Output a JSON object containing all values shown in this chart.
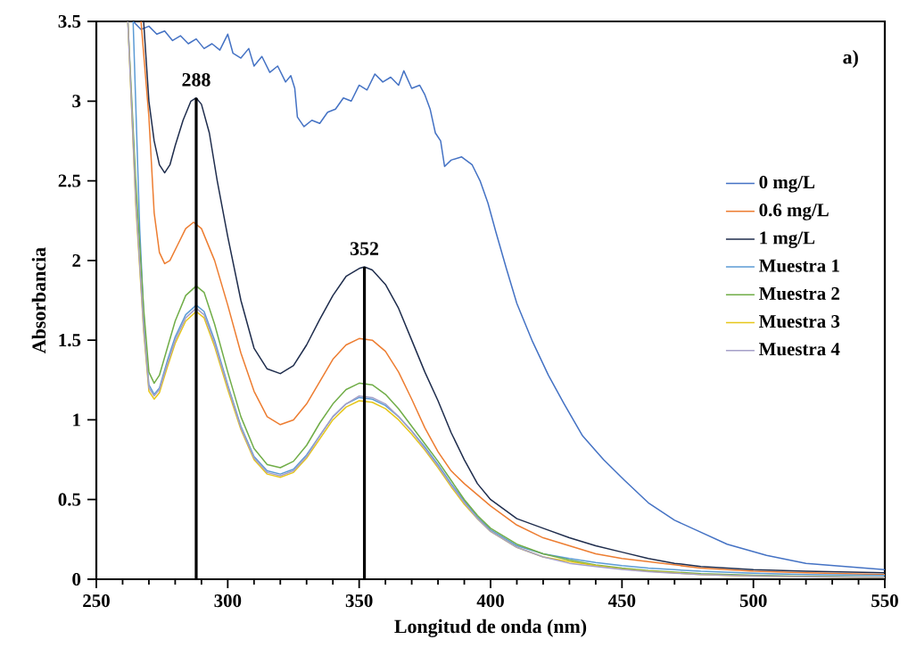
{
  "chart_data": {
    "type": "line",
    "xlabel": "Longitud de onda (nm)",
    "ylabel": "Absorbancia",
    "xlim": [
      250,
      550
    ],
    "ylim": [
      0,
      3.5
    ],
    "xticks": [
      250,
      300,
      350,
      400,
      450,
      500,
      550
    ],
    "yticks": [
      0,
      0.5,
      1,
      1.5,
      2,
      2.5,
      3,
      3.5
    ],
    "legend": "right",
    "grid": false,
    "line_style": "solid",
    "annotations": [
      {
        "text": "288",
        "x": 288,
        "y": 3.02
      },
      {
        "text": "352",
        "x": 352,
        "y": 1.96
      },
      "a)"
    ],
    "series": [
      {
        "name": "0 mg/L",
        "color": "#4472c4",
        "x": [
          264,
          267,
          270,
          273,
          276,
          279,
          282,
          285,
          288,
          291,
          294,
          297,
          300,
          302,
          305,
          308,
          310,
          313,
          316,
          319,
          322,
          324,
          325.5,
          326.5,
          329,
          332,
          335,
          338,
          341,
          344,
          347,
          350,
          353,
          356,
          359,
          362,
          365,
          367,
          370,
          373,
          375,
          377,
          379,
          381,
          382.5,
          385,
          389,
          393,
          396,
          399,
          402,
          406,
          410,
          416,
          422,
          428,
          435,
          443,
          451,
          460,
          470,
          478,
          490,
          505,
          520,
          535,
          550
        ],
        "values": [
          3.5,
          3.45,
          3.47,
          3.42,
          3.44,
          3.38,
          3.41,
          3.36,
          3.39,
          3.33,
          3.36,
          3.32,
          3.42,
          3.3,
          3.27,
          3.33,
          3.22,
          3.28,
          3.18,
          3.22,
          3.12,
          3.16,
          3.08,
          2.9,
          2.84,
          2.88,
          2.86,
          2.93,
          2.95,
          3.02,
          3.0,
          3.1,
          3.07,
          3.17,
          3.12,
          3.15,
          3.1,
          3.19,
          3.08,
          3.1,
          3.04,
          2.95,
          2.8,
          2.75,
          2.59,
          2.63,
          2.65,
          2.6,
          2.5,
          2.36,
          2.18,
          1.95,
          1.73,
          1.49,
          1.28,
          1.1,
          0.9,
          0.75,
          0.62,
          0.48,
          0.37,
          0.31,
          0.22,
          0.15,
          0.1,
          0.08,
          0.06
        ]
      },
      {
        "name": "0.6 mg/L",
        "color": "#ed7d31",
        "x": [
          267,
          270,
          272,
          274,
          276,
          278,
          281,
          284,
          287,
          290,
          295,
          300,
          305,
          310,
          315,
          320,
          325,
          330,
          335,
          340,
          345,
          350,
          355,
          360,
          365,
          370,
          375,
          380,
          385,
          390,
          395,
          400,
          410,
          420,
          430,
          440,
          450,
          460,
          470,
          480,
          500,
          520,
          550
        ],
        "values": [
          3.5,
          2.9,
          2.3,
          2.05,
          1.98,
          2.0,
          2.1,
          2.2,
          2.24,
          2.2,
          2.0,
          1.72,
          1.42,
          1.18,
          1.02,
          0.97,
          1.0,
          1.1,
          1.24,
          1.38,
          1.47,
          1.51,
          1.5,
          1.43,
          1.3,
          1.13,
          0.95,
          0.8,
          0.68,
          0.6,
          0.53,
          0.46,
          0.34,
          0.26,
          0.21,
          0.16,
          0.13,
          0.11,
          0.09,
          0.07,
          0.05,
          0.04,
          0.03
        ]
      },
      {
        "name": "1 mg/L",
        "color": "#1f2d4d",
        "x": [
          268,
          270,
          272,
          274,
          276,
          278,
          280,
          283,
          286,
          288,
          290,
          293,
          296,
          300,
          305,
          310,
          315,
          320,
          325,
          330,
          335,
          340,
          345,
          350,
          352,
          355,
          360,
          365,
          370,
          375,
          380,
          385,
          390,
          395,
          400,
          410,
          420,
          430,
          440,
          450,
          460,
          470,
          480,
          500,
          520,
          550
        ],
        "values": [
          3.5,
          3.0,
          2.75,
          2.6,
          2.55,
          2.6,
          2.72,
          2.88,
          3.0,
          3.02,
          2.98,
          2.8,
          2.5,
          2.15,
          1.75,
          1.45,
          1.32,
          1.29,
          1.34,
          1.47,
          1.63,
          1.78,
          1.9,
          1.95,
          1.96,
          1.94,
          1.85,
          1.7,
          1.5,
          1.3,
          1.12,
          0.92,
          0.75,
          0.6,
          0.5,
          0.38,
          0.32,
          0.26,
          0.21,
          0.17,
          0.13,
          0.1,
          0.08,
          0.06,
          0.05,
          0.04
        ]
      },
      {
        "name": "Muestra 1",
        "color": "#5b9bd5",
        "x": [
          264,
          266.5,
          268.5,
          270,
          272,
          274,
          277,
          280,
          284,
          288,
          291,
          295,
          300,
          305,
          310,
          315,
          320,
          325,
          330,
          335,
          340,
          345,
          350,
          355,
          360,
          365,
          370,
          375,
          380,
          385,
          390,
          395,
          400,
          410,
          420,
          430,
          440,
          450,
          460,
          470,
          480,
          500,
          520,
          550
        ],
        "values": [
          3.5,
          2.2,
          1.5,
          1.22,
          1.16,
          1.2,
          1.37,
          1.52,
          1.66,
          1.72,
          1.68,
          1.5,
          1.22,
          0.96,
          0.77,
          0.68,
          0.66,
          0.69,
          0.78,
          0.9,
          1.02,
          1.1,
          1.14,
          1.13,
          1.09,
          1.02,
          0.93,
          0.83,
          0.72,
          0.6,
          0.49,
          0.39,
          0.31,
          0.21,
          0.16,
          0.13,
          0.105,
          0.085,
          0.07,
          0.06,
          0.05,
          0.038,
          0.03,
          0.024
        ]
      },
      {
        "name": "Muestra 2",
        "color": "#70ad47",
        "x": [
          262,
          265,
          268,
          270,
          272,
          274,
          277,
          280,
          284,
          288,
          291,
          295,
          300,
          305,
          310,
          315,
          320,
          325,
          330,
          335,
          340,
          345,
          350,
          355,
          360,
          365,
          370,
          375,
          380,
          385,
          390,
          395,
          400,
          410,
          420,
          430,
          440,
          450,
          460,
          470,
          480,
          500,
          520,
          550
        ],
        "values": [
          3.5,
          2.5,
          1.7,
          1.3,
          1.23,
          1.28,
          1.45,
          1.62,
          1.78,
          1.84,
          1.8,
          1.6,
          1.3,
          1.02,
          0.82,
          0.72,
          0.7,
          0.74,
          0.84,
          0.98,
          1.1,
          1.19,
          1.23,
          1.22,
          1.16,
          1.07,
          0.96,
          0.85,
          0.74,
          0.62,
          0.5,
          0.4,
          0.32,
          0.22,
          0.16,
          0.12,
          0.09,
          0.07,
          0.055,
          0.045,
          0.035,
          0.025,
          0.018,
          0.012
        ]
      },
      {
        "name": "Muestra 3",
        "color": "#e6c619",
        "x": [
          262,
          265,
          268,
          270,
          272,
          274,
          277,
          280,
          284,
          288,
          291,
          295,
          300,
          305,
          310,
          315,
          320,
          325,
          330,
          335,
          340,
          345,
          350,
          355,
          360,
          365,
          370,
          375,
          380,
          385,
          390,
          395,
          400,
          410,
          420,
          430,
          440,
          450,
          460,
          470,
          480,
          500,
          520,
          550
        ],
        "values": [
          3.5,
          2.35,
          1.56,
          1.18,
          1.13,
          1.17,
          1.33,
          1.48,
          1.62,
          1.68,
          1.64,
          1.46,
          1.19,
          0.94,
          0.75,
          0.66,
          0.64,
          0.67,
          0.76,
          0.88,
          1.0,
          1.08,
          1.12,
          1.11,
          1.07,
          1.0,
          0.91,
          0.81,
          0.7,
          0.58,
          0.47,
          0.38,
          0.3,
          0.2,
          0.14,
          0.11,
          0.085,
          0.065,
          0.05,
          0.04,
          0.03,
          0.02,
          0.015,
          0.01
        ]
      },
      {
        "name": "Muestra 4",
        "color": "#a5a0c8",
        "x": [
          262,
          265,
          268,
          270,
          272,
          274,
          277,
          280,
          284,
          288,
          291,
          295,
          300,
          305,
          310,
          315,
          320,
          325,
          330,
          335,
          340,
          345,
          350,
          355,
          360,
          365,
          370,
          375,
          380,
          385,
          390,
          395,
          400,
          410,
          420,
          430,
          440,
          450,
          460,
          470,
          480,
          500,
          520,
          550
        ],
        "values": [
          3.5,
          2.38,
          1.58,
          1.2,
          1.15,
          1.19,
          1.35,
          1.5,
          1.64,
          1.7,
          1.66,
          1.48,
          1.21,
          0.95,
          0.76,
          0.67,
          0.65,
          0.68,
          0.77,
          0.9,
          1.02,
          1.1,
          1.15,
          1.14,
          1.1,
          1.02,
          0.93,
          0.82,
          0.71,
          0.59,
          0.48,
          0.38,
          0.3,
          0.2,
          0.14,
          0.1,
          0.08,
          0.062,
          0.048,
          0.038,
          0.03,
          0.021,
          0.015,
          0.011
        ]
      },
      {
        "type": "line",
        "color": "#000000",
        "x": [
          288,
          288
        ],
        "values": [
          0,
          3.02
        ]
      },
      {
        "type": "line",
        "color": "#000000",
        "x": [
          352,
          352
        ],
        "values": [
          0,
          1.96
        ]
      }
    ]
  }
}
